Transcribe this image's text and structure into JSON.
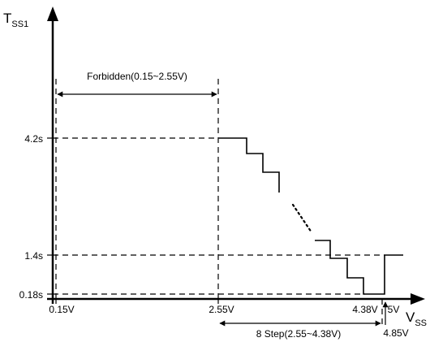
{
  "y_axis": {
    "label_main": "T",
    "label_sub": "SS1",
    "ticks": [
      "4.2s",
      "1.4s",
      "0.18s"
    ]
  },
  "x_axis": {
    "label_main": "V",
    "label_sub": "SS",
    "ticks": [
      "0.15V",
      "2.55V",
      "4.38V",
      "5V"
    ],
    "marker_label": "4.85V"
  },
  "annotations": {
    "forbidden": "Forbidden(0.15~2.55V)",
    "steps": "8 Step(2.55~4.38V)"
  },
  "colors": {
    "line": "#000000",
    "background": "#ffffff"
  }
}
